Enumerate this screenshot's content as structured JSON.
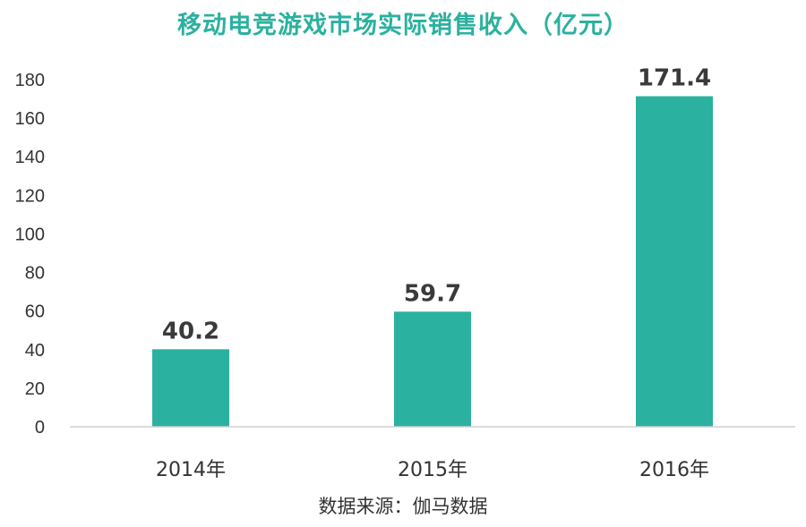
{
  "chart_data": {
    "type": "bar",
    "title": "移动电竞游戏市场实际销售收入（亿元）",
    "categories": [
      "2014年",
      "2015年",
      "2016年"
    ],
    "values": [
      40.2,
      59.7,
      171.4
    ],
    "data_labels": [
      "40.2",
      "59.7",
      "171.4"
    ],
    "ylim": [
      0,
      180
    ],
    "yticks": [
      0,
      20,
      40,
      60,
      80,
      100,
      120,
      140,
      160,
      180
    ],
    "xlabel": "",
    "ylabel": "",
    "grid": false,
    "legend": "none",
    "bar_color": "#2bb19f",
    "source": "数据来源：伽马数据"
  }
}
